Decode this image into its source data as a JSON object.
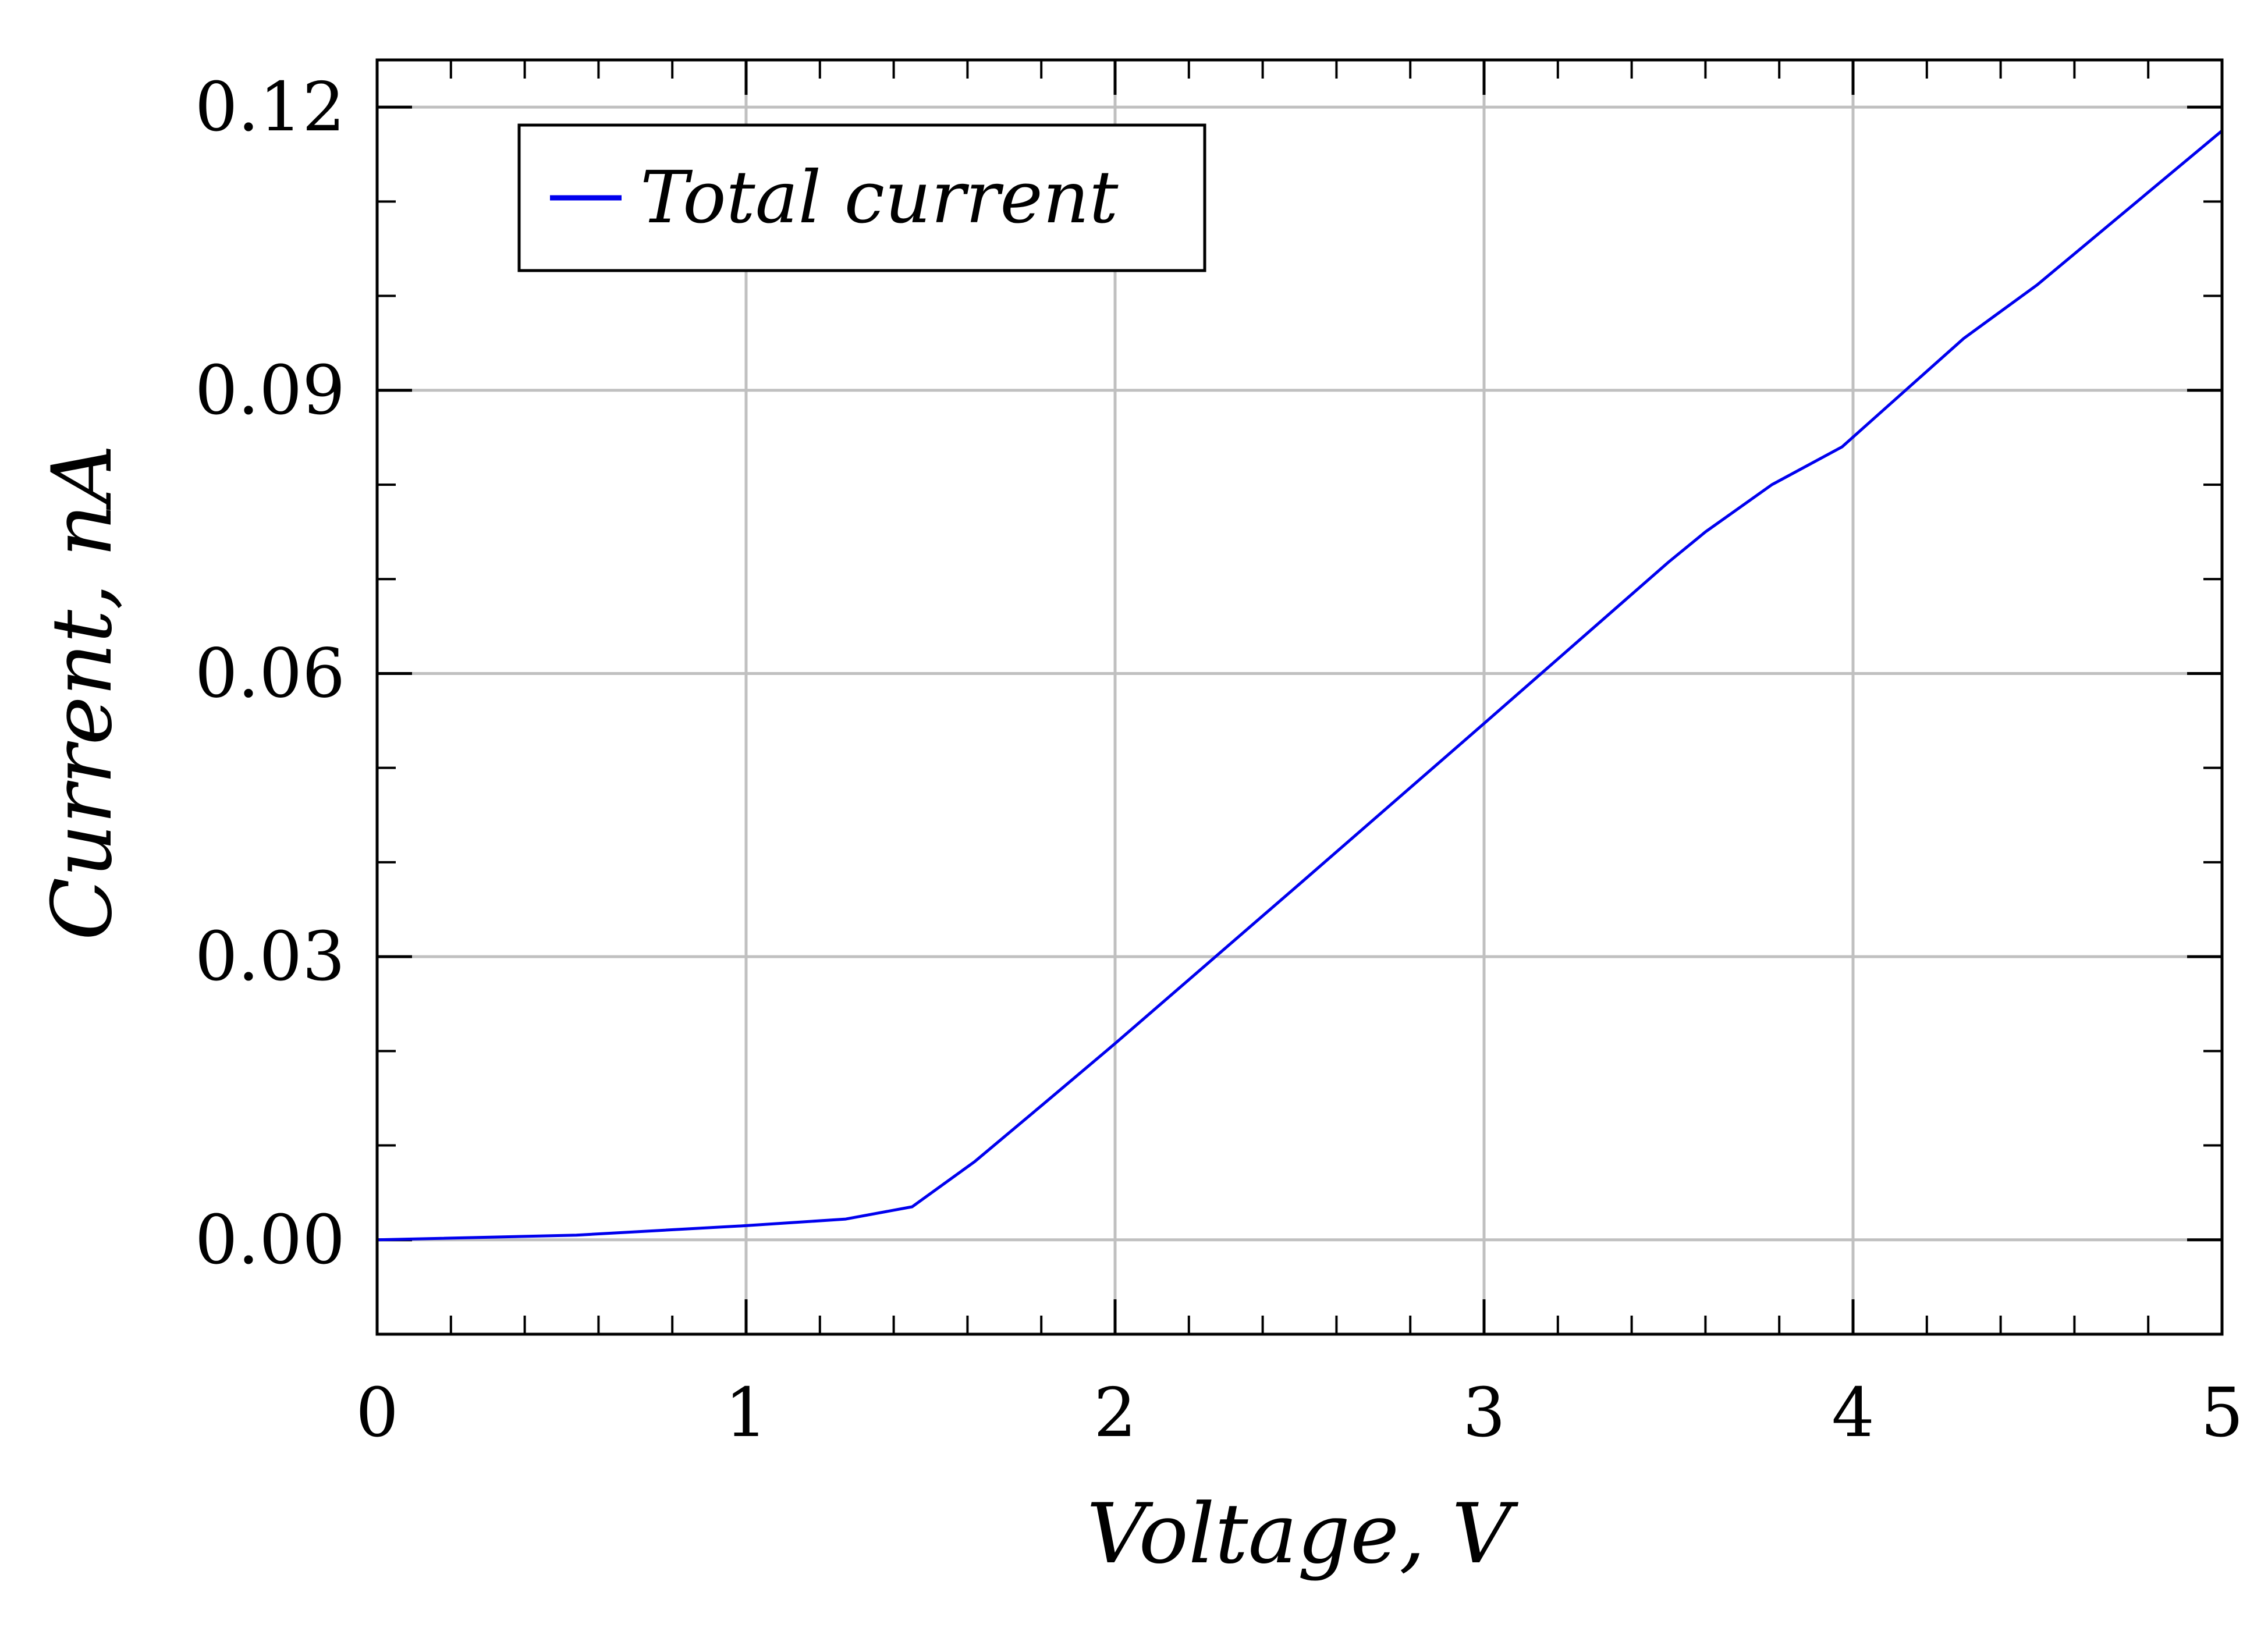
{
  "chart_data": {
    "type": "line",
    "title": "",
    "xlabel": "Voltage, V",
    "ylabel": "Current, nA",
    "xlim": [
      0,
      5
    ],
    "ylim": [
      -0.01,
      0.125
    ],
    "grid": true,
    "legend": {
      "position": "top-left",
      "entries": [
        "Total current"
      ]
    },
    "x_ticks": [
      0,
      1,
      2,
      3,
      4,
      5
    ],
    "x_tick_labels": [
      "0",
      "1",
      "2",
      "3",
      "4",
      "5"
    ],
    "y_ticks": [
      0.0,
      0.03,
      0.06,
      0.09,
      0.12
    ],
    "y_tick_labels": [
      "0.00",
      "0.03",
      "0.06",
      "0.09",
      "0.12"
    ],
    "series": [
      {
        "name": "Total current",
        "color": "#0000ee",
        "x": [
          0,
          0.54,
          1.0,
          1.27,
          1.45,
          1.62,
          1.8,
          2.0,
          2.5,
          3.0,
          3.5,
          3.6,
          3.78,
          3.97,
          4.3,
          4.5,
          5.0
        ],
        "y": [
          0.0,
          0.0005,
          0.0015,
          0.0022,
          0.0035,
          0.0083,
          0.0142,
          0.0208,
          0.0377,
          0.0547,
          0.0718,
          0.075,
          0.08,
          0.084,
          0.0955,
          0.1012,
          0.1175
        ]
      }
    ]
  }
}
